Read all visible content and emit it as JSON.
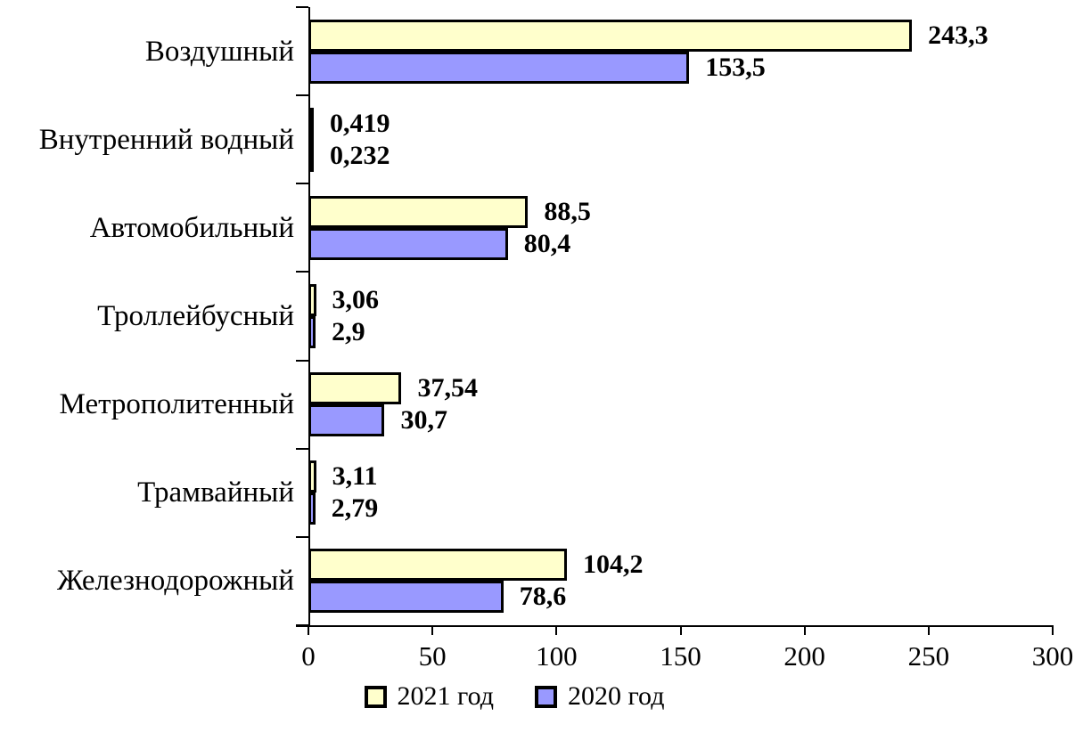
{
  "chart_data": {
    "type": "bar",
    "orientation": "horizontal",
    "title": "",
    "xlabel": "",
    "ylabel": "",
    "categories": [
      "Воздушный",
      "Внутренний водный",
      "Автомобильный",
      "Троллейбусный",
      "Метрополитенный",
      "Трамвайный",
      "Железнодорожный"
    ],
    "series": [
      {
        "name": "2021 год",
        "color": "#FFFFCC",
        "values": [
          243.3,
          0.419,
          88.5,
          3.06,
          37.54,
          3.11,
          104.2
        ],
        "value_labels": [
          "243,3",
          "0,419",
          "88,5",
          "3,06",
          "37,54",
          "3,11",
          "104,2"
        ]
      },
      {
        "name": "2020 год",
        "color": "#9999FF",
        "values": [
          153.5,
          0.232,
          80.4,
          2.9,
          30.7,
          2.79,
          78.6
        ],
        "value_labels": [
          "153,5",
          "0,232",
          "80,4",
          "2,9",
          "30,7",
          "2,79",
          "78,6"
        ]
      }
    ],
    "xlim": [
      0,
      300
    ],
    "x_ticks": [
      0,
      50,
      100,
      150,
      200,
      250,
      300
    ],
    "x_tick_labels": [
      "0",
      "50",
      "100",
      "150",
      "200",
      "250",
      "300"
    ],
    "grid": false,
    "legend_position": "bottom",
    "bar_border_color": "#000000",
    "axis_color": "#000000",
    "background_color": "#FFFFFF"
  }
}
